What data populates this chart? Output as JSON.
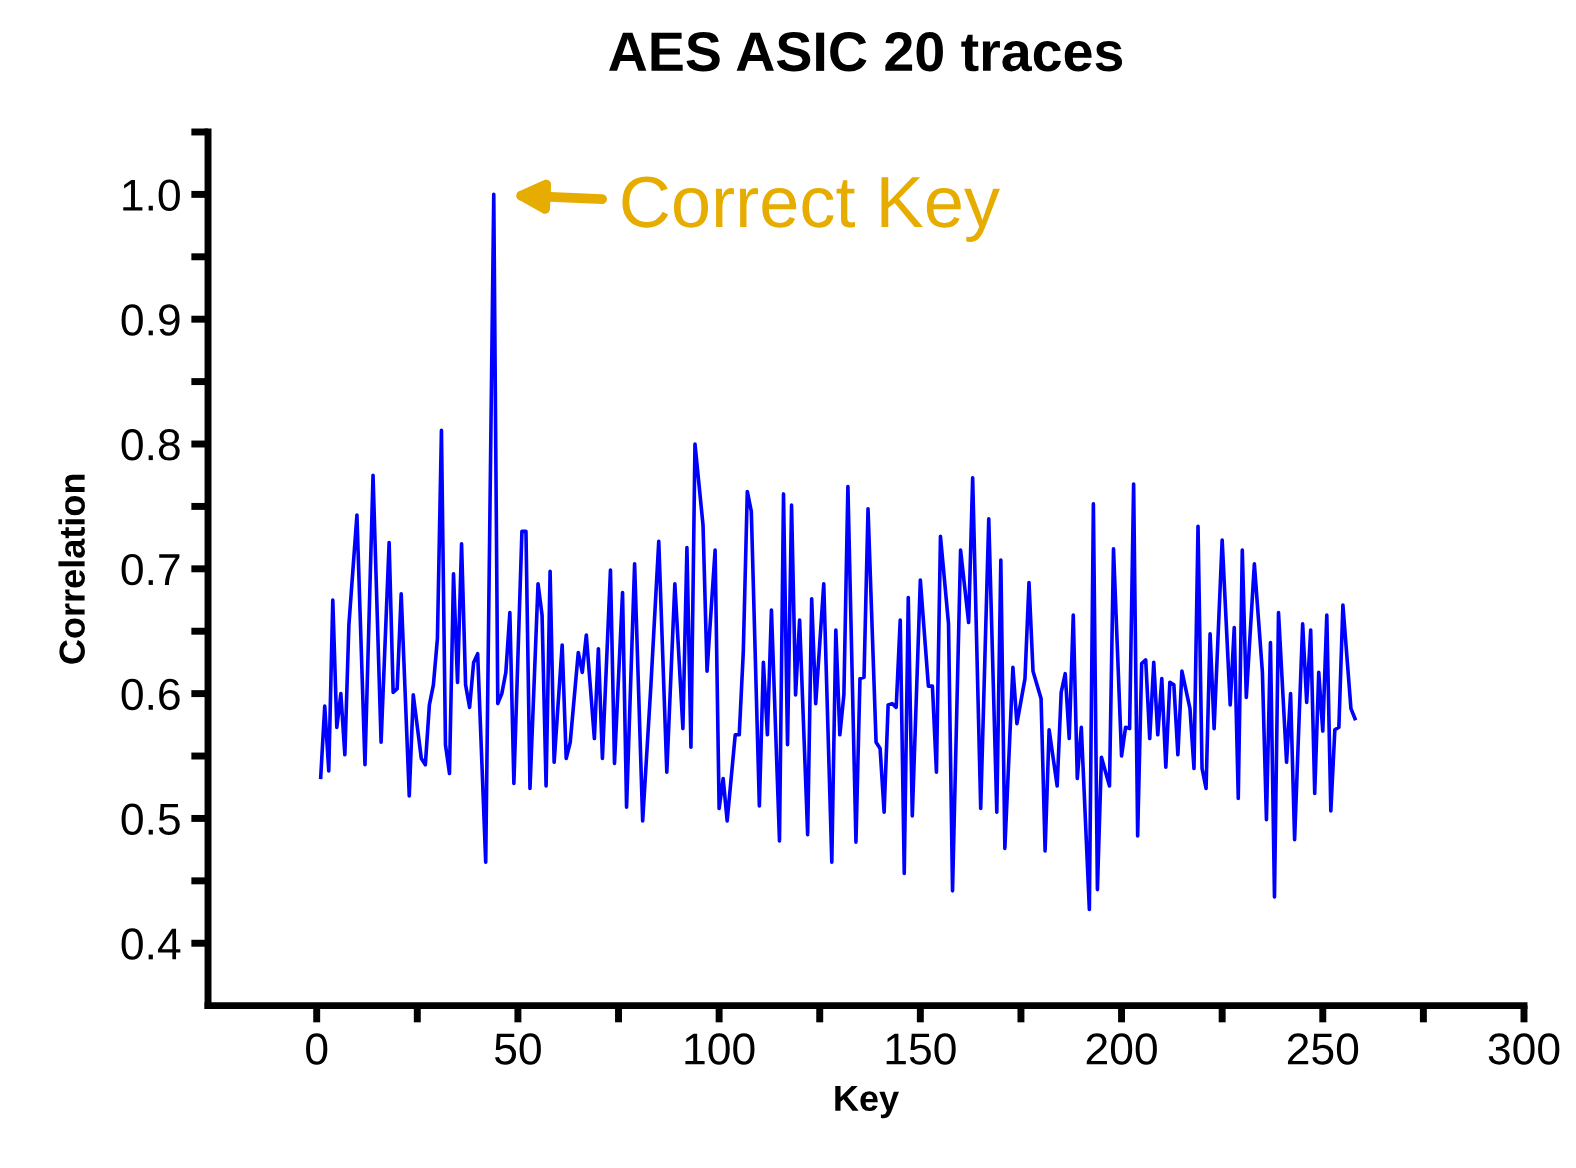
{
  "chart_data": {
    "type": "line",
    "title": "AES ASIC 20 traces",
    "xlabel": "Key",
    "ylabel": "Correlation",
    "annotations": [
      {
        "text": "Correct Key",
        "x": 44,
        "y": 1.0
      }
    ],
    "x": [
      1,
      2,
      3,
      4,
      5,
      6,
      7,
      8,
      10,
      12,
      14,
      16,
      18,
      19,
      20,
      21,
      23,
      24,
      26,
      27,
      28,
      29,
      30,
      31,
      32,
      33,
      34,
      35,
      36,
      37,
      38,
      39,
      40,
      42,
      44,
      45,
      46,
      47,
      48,
      49,
      51,
      52,
      53,
      55,
      56,
      57,
      58,
      59,
      61,
      62,
      63,
      65,
      66,
      67,
      69,
      70,
      71,
      73,
      74,
      76,
      77,
      79,
      81,
      83,
      85,
      87,
      89,
      91,
      92,
      93,
      94,
      96,
      97,
      99,
      100,
      101,
      102,
      104,
      105,
      106,
      107,
      108,
      110,
      111,
      112,
      113,
      115,
      116,
      117,
      118,
      119,
      120,
      122,
      123,
      124,
      126,
      128,
      129,
      130,
      131,
      132,
      134,
      135,
      136,
      137,
      139,
      140,
      141,
      142,
      143,
      144,
      145,
      146,
      147,
      148,
      150,
      152,
      153,
      154,
      155,
      157,
      158,
      160,
      162,
      163,
      165,
      167,
      169,
      170,
      171,
      173,
      174,
      176,
      177,
      178,
      180,
      181,
      182,
      184,
      185,
      186,
      187,
      188,
      189,
      190,
      192,
      193,
      194,
      195,
      197,
      198,
      200,
      201,
      202,
      203,
      204,
      205,
      206,
      207,
      208,
      209,
      210,
      211,
      212,
      213,
      214,
      215,
      217,
      218,
      219,
      220,
      221,
      222,
      223,
      225,
      227,
      228,
      229,
      230,
      231,
      233,
      235,
      236,
      237,
      238,
      239,
      241,
      242,
      243,
      245,
      246,
      247,
      248,
      249,
      250,
      251,
      252,
      253,
      254,
      255,
      257,
      258
    ],
    "series": [
      {
        "color": "#0000ff",
        "values": [
          0.533,
          0.59,
          0.538,
          0.675,
          0.573,
          0.6,
          0.551,
          0.655,
          0.743,
          0.543,
          0.775,
          0.561,
          0.721,
          0.601,
          0.604,
          0.68,
          0.518,
          0.599,
          0.548,
          0.543,
          0.591,
          0.607,
          0.644,
          0.811,
          0.559,
          0.536,
          0.696,
          0.609,
          0.72,
          0.607,
          0.589,
          0.625,
          0.632,
          0.465,
          1.0,
          0.592,
          0.6,
          0.617,
          0.665,
          0.528,
          0.73,
          0.73,
          0.524,
          0.688,
          0.663,
          0.526,
          0.698,
          0.545,
          0.639,
          0.548,
          0.561,
          0.633,
          0.617,
          0.647,
          0.564,
          0.636,
          0.548,
          0.699,
          0.544,
          0.681,
          0.509,
          0.704,
          0.498,
          0.604,
          0.722,
          0.537,
          0.688,
          0.572,
          0.717,
          0.557,
          0.8,
          0.735,
          0.618,
          0.715,
          0.508,
          0.532,
          0.498,
          0.567,
          0.567,
          0.633,
          0.762,
          0.746,
          0.51,
          0.625,
          0.567,
          0.667,
          0.482,
          0.76,
          0.559,
          0.751,
          0.599,
          0.659,
          0.487,
          0.676,
          0.592,
          0.688,
          0.465,
          0.651,
          0.567,
          0.599,
          0.766,
          0.481,
          0.612,
          0.613,
          0.748,
          0.561,
          0.556,
          0.505,
          0.591,
          0.592,
          0.589,
          0.659,
          0.456,
          0.677,
          0.502,
          0.691,
          0.606,
          0.606,
          0.537,
          0.726,
          0.656,
          0.442,
          0.715,
          0.657,
          0.773,
          0.508,
          0.74,
          0.505,
          0.707,
          0.476,
          0.621,
          0.576,
          0.612,
          0.689,
          0.618,
          0.596,
          0.474,
          0.571,
          0.526,
          0.601,
          0.616,
          0.564,
          0.663,
          0.532,
          0.573,
          0.427,
          0.752,
          0.443,
          0.549,
          0.526,
          0.716,
          0.55,
          0.573,
          0.572,
          0.768,
          0.486,
          0.624,
          0.627,
          0.564,
          0.625,
          0.567,
          0.612,
          0.541,
          0.609,
          0.607,
          0.551,
          0.618,
          0.588,
          0.54,
          0.734,
          0.54,
          0.524,
          0.648,
          0.572,
          0.723,
          0.591,
          0.653,
          0.516,
          0.715,
          0.597,
          0.704,
          0.617,
          0.499,
          0.641,
          0.437,
          0.665,
          0.545,
          0.6,
          0.483,
          0.656,
          0.593,
          0.651,
          0.52,
          0.617,
          0.57,
          0.663,
          0.506,
          0.571,
          0.573,
          0.671,
          0.588,
          0.58
        ]
      }
    ],
    "xlim": [
      -27,
      300
    ],
    "xticks": [
      0,
      {
        "value": 25,
        "label": null
      },
      50,
      {
        "value": 75,
        "label": null
      },
      100,
      {
        "value": 125,
        "label": null
      },
      150,
      {
        "value": 175,
        "label": null
      },
      200,
      {
        "value": 225,
        "label": null
      },
      250,
      {
        "value": 275,
        "label": null
      },
      300
    ],
    "ylim": [
      0.35,
      1.05
    ],
    "yticks": [
      0.4,
      {
        "value": 0.45,
        "label": null
      },
      0.5,
      {
        "value": 0.55,
        "label": null
      },
      0.6,
      {
        "value": 0.65,
        "label": null
      },
      0.7,
      {
        "value": 0.75,
        "label": null
      },
      0.8,
      {
        "value": 0.85,
        "label": null
      },
      0.9,
      {
        "value": 0.95,
        "label": null
      },
      {
        "value": 1.0,
        "label": "1.0"
      },
      {
        "value": 1.05,
        "label": null
      }
    ],
    "marker": "none",
    "line_style": "solid"
  }
}
